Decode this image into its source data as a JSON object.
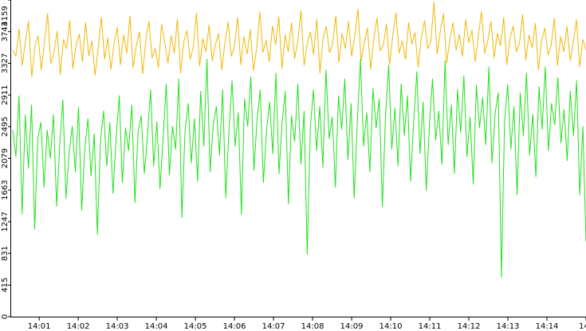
{
  "chart_data": {
    "type": "line",
    "title": "",
    "xlabel": "",
    "ylabel": "",
    "ylim": [
      0,
      4159
    ],
    "y_ticks": [
      "0",
      "415",
      "831",
      "1247",
      "1663",
      "2079",
      "2495",
      "2911",
      "3327",
      "3743",
      "4159"
    ],
    "x_ticks": [
      "14:01",
      "14:02",
      "14:03",
      "14:04",
      "14:05",
      "14:06",
      "14:07",
      "14:08",
      "14:09",
      "14:10",
      "14:11",
      "14:12",
      "14:13",
      "14:14",
      "14"
    ],
    "x_start": "14:00:17",
    "x_end": "14:15:00",
    "grid": false,
    "legend": "none",
    "series": [
      {
        "color": "#f2b705",
        "values": [
          3500,
          3420,
          3780,
          3300,
          3620,
          3880,
          3150,
          3550,
          3690,
          3240,
          3600,
          3980,
          3330,
          3470,
          3750,
          3180,
          3640,
          3520,
          3890,
          3260,
          3570,
          3710,
          3350,
          3860,
          3430,
          3620,
          3170,
          3540,
          3930,
          3380,
          3660,
          3250,
          3590,
          3800,
          3310,
          3700,
          3460,
          3950,
          3270,
          3560,
          3740,
          3190,
          3630,
          3880,
          3400,
          3520,
          3270,
          3840,
          3590,
          3330,
          3690,
          3460,
          3910,
          3200,
          3610,
          3760,
          3380,
          3540,
          3990,
          3290,
          3650,
          3480,
          3830,
          3360,
          3580,
          3720,
          3240,
          3600,
          3870,
          3420,
          3550,
          3930,
          3310,
          3680,
          3450,
          3770,
          3230,
          3520,
          4000,
          3470,
          3630,
          3350,
          3820,
          3570,
          3940,
          3260,
          3700,
          3480,
          3860,
          3390,
          3620,
          4020,
          3300,
          3590,
          3740,
          3440,
          3910,
          3200,
          3660,
          3810,
          3470,
          3580,
          3950,
          3340,
          3720,
          3520,
          3880,
          3420,
          3690,
          4040,
          3360,
          3600,
          3790,
          3250,
          3650,
          3920,
          3490,
          3560,
          3840,
          3310,
          3700,
          3990,
          3460,
          3620,
          3380,
          3860,
          3580,
          3730,
          3280,
          3660,
          3890,
          3520,
          3610,
          4130,
          3450,
          3750,
          3980,
          3330,
          3640,
          3860,
          3500,
          3710,
          3420,
          3900,
          3600,
          3760,
          3350,
          3680,
          4010,
          3460,
          3620,
          3880,
          3400,
          3720,
          3560,
          3930,
          3310,
          3650,
          3820,
          3480,
          3590,
          3970,
          3370,
          3700,
          3530,
          3850,
          3240,
          3630,
          3790,
          3440,
          3560,
          3920,
          3300,
          3680,
          3480,
          3810,
          3360,
          3600,
          3900,
          3280,
          3640,
          3500
        ],
        "note": ""
      },
      {
        "color": "#22e01c",
        "values": [
          2450,
          2100,
          2900,
          1350,
          2650,
          1950,
          2780,
          1150,
          2350,
          2550,
          1700,
          2450,
          2080,
          2650,
          1450,
          2250,
          2850,
          1550,
          2150,
          2500,
          1900,
          2750,
          1400,
          2200,
          2600,
          1850,
          2400,
          1080,
          2300,
          2700,
          1980,
          2550,
          1620,
          2350,
          2900,
          1760,
          2480,
          2180,
          2780,
          1500,
          2420,
          2640,
          1880,
          2360,
          2980,
          1980,
          2560,
          1680,
          2340,
          3060,
          1860,
          2500,
          2200,
          3120,
          1300,
          2440,
          2800,
          2020,
          2600,
          1780,
          2960,
          2240,
          3380,
          1900,
          2520,
          2760,
          2120,
          2980,
          1560,
          2440,
          3100,
          2240,
          2680,
          1340,
          2860,
          2500,
          3150,
          1920,
          2600,
          2980,
          1760,
          2440,
          2820,
          2140,
          3200,
          1880,
          2560,
          2960,
          1480,
          2640,
          2300,
          3060,
          2000,
          2700,
          820,
          2480,
          2980,
          2180,
          2760,
          1960,
          3240,
          2340,
          2620,
          1700,
          2900,
          2460,
          3120,
          2060,
          2800,
          1560,
          2560,
          3380,
          2240,
          2680,
          1900,
          3000,
          2480,
          2860,
          1440,
          2640,
          3300,
          2200,
          2740,
          1980,
          3060,
          2380,
          2900,
          1780,
          2580,
          3220,
          2140,
          2820,
          1660,
          2500,
          3120,
          2320,
          2700,
          2000,
          3360,
          2260,
          2780,
          1880,
          2980,
          2420,
          3160,
          2100,
          2620,
          1740,
          3040,
          2480,
          2880,
          2260,
          3280,
          2020,
          2680,
          2940,
          520,
          2560,
          3050,
          2200,
          2760,
          1600,
          2940,
          2380,
          3200,
          2120,
          2660,
          1840,
          3020,
          2460,
          3280,
          2180,
          2800,
          2520,
          3140,
          2280,
          2720,
          2050,
          2960,
          2380,
          3100,
          1600,
          2500,
          980
        ],
        "note": ""
      }
    ]
  }
}
